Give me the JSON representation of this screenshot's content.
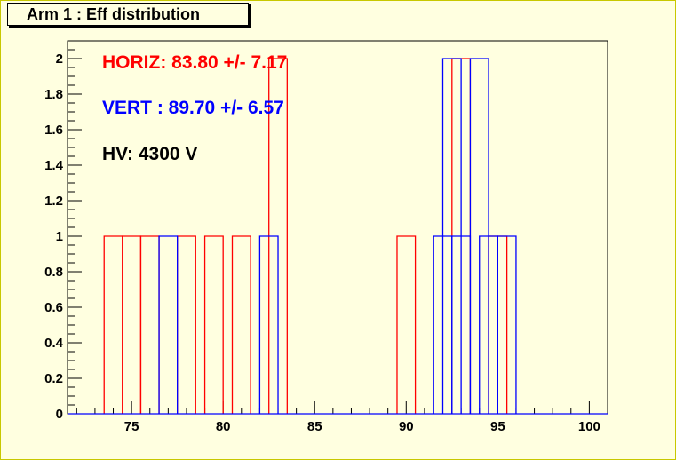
{
  "chart_data": {
    "type": "bar",
    "title": "Arm 1 : Eff distribution",
    "xlim": [
      71.5,
      101
    ],
    "ylim": [
      0,
      2.1
    ],
    "bin_width": 1,
    "x_ticks": [
      75,
      80,
      85,
      90,
      95,
      100
    ],
    "y_ticks": [
      0,
      0.2,
      0.4,
      0.6,
      0.8,
      1,
      1.2,
      1.4,
      1.6,
      1.8,
      2
    ],
    "grid": false,
    "series": [
      {
        "color": "#ff0000",
        "bins": [
          {
            "x": 73.5,
            "value": 1
          },
          {
            "x": 74.5,
            "value": 1
          },
          {
            "x": 75.5,
            "value": 1
          },
          {
            "x": 77.5,
            "value": 1
          },
          {
            "x": 79,
            "value": 1
          },
          {
            "x": 80.5,
            "value": 1
          },
          {
            "x": 82.5,
            "value": 2
          },
          {
            "x": 89.5,
            "value": 1
          },
          {
            "x": 92.5,
            "value": 2
          },
          {
            "x": 94.5,
            "value": 1
          }
        ]
      },
      {
        "color": "#0000ff",
        "bins": [
          {
            "x": 76.5,
            "value": 1
          },
          {
            "x": 82,
            "value": 1
          },
          {
            "x": 91.5,
            "value": 1
          },
          {
            "x": 92,
            "value": 2
          },
          {
            "x": 92.5,
            "value": 1
          },
          {
            "x": 93.5,
            "value": 2
          },
          {
            "x": 94,
            "value": 1
          },
          {
            "x": 95,
            "value": 1
          }
        ]
      }
    ],
    "annotations": [
      {
        "text": "HORIZ: 83.80 +/- 7.17",
        "color": "#ff0000"
      },
      {
        "text": "VERT : 89.70 +/- 6.57",
        "color": "#0000ff"
      },
      {
        "text": "HV: 4300 V",
        "color": "#000000"
      }
    ]
  }
}
